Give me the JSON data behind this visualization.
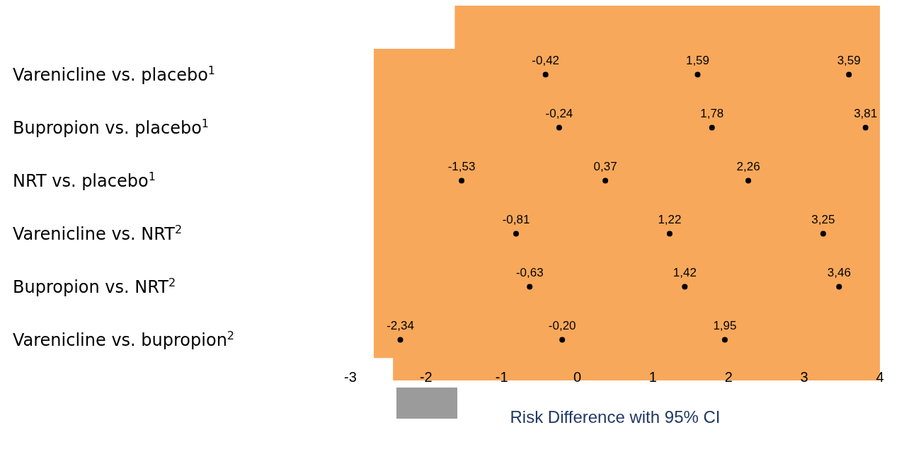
{
  "chart_data": {
    "type": "scatter",
    "orientation": "horizontal",
    "xlabel": "Risk Difference with 95% CI",
    "categories": [
      "Varenicline vs. placebo$^{1}$",
      "Bupropion vs. placebo$^{1}$",
      "NRT vs. placebo$^{1}$",
      "Varenicline vs. NRT$^{2}$",
      "Bupropion vs. NRT$^{2}$",
      "Varenicline vs. bupropion$^{2}$"
    ],
    "xlim": [
      -3,
      4
    ],
    "xticks": [
      -3,
      -2,
      -1,
      0,
      1,
      2,
      3,
      4
    ],
    "marker": "circle",
    "series": [
      {
        "color": "#000000",
        "values": [
          -0.42,
          -0.24,
          -1.53,
          -0.81,
          -0.63,
          -2.34
        ],
        "value_labels": [
          "-0,42",
          "-0,24",
          "-1,53",
          "-0,81",
          "-0,63",
          "-2,34"
        ]
      },
      {
        "color": "#000000",
        "values": [
          1.59,
          1.78,
          0.37,
          1.22,
          1.42,
          -0.2
        ],
        "value_labels": [
          "1,59",
          "1,78",
          "0,37",
          "1,22",
          "1,42",
          "-0,20"
        ]
      },
      {
        "color": "#000000",
        "values": [
          3.59,
          3.81,
          2.26,
          3.25,
          3.46,
          1.95
        ],
        "value_labels": [
          "3,59",
          "3,81",
          "2,26",
          "3,25",
          "3,46",
          "1,95"
        ]
      }
    ]
  }
}
